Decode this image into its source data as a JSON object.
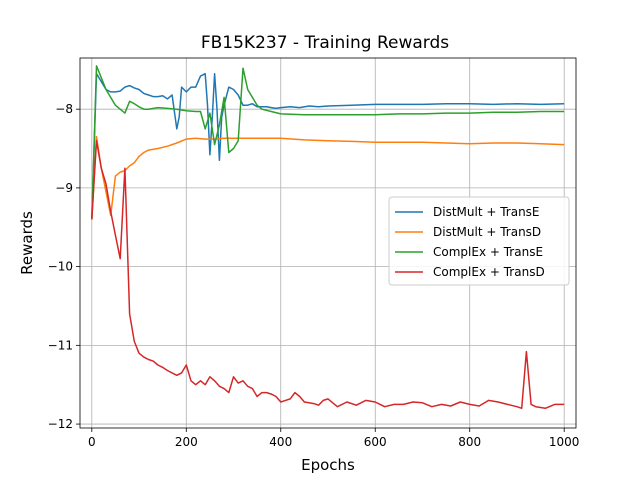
{
  "chart_data": {
    "type": "line",
    "title": "FB15K237 - Training Rewards",
    "xlabel": "Epochs",
    "ylabel": "Rewards",
    "xlim": [
      -25,
      1025
    ],
    "ylim": [
      -12.05,
      -7.35
    ],
    "xticks": [
      0,
      200,
      400,
      600,
      800,
      1000
    ],
    "yticks": [
      -12,
      -11,
      -10,
      -9,
      -8
    ],
    "grid": true,
    "legend_position": "center-right",
    "series": [
      {
        "name": "DistMult + TransE",
        "color": "#1f77b4",
        "x": [
          0,
          10,
          20,
          30,
          40,
          50,
          60,
          70,
          80,
          90,
          100,
          110,
          120,
          130,
          140,
          150,
          160,
          170,
          180,
          185,
          190,
          200,
          210,
          220,
          230,
          240,
          245,
          250,
          255,
          260,
          265,
          270,
          275,
          280,
          290,
          300,
          310,
          320,
          330,
          340,
          350,
          360,
          370,
          380,
          390,
          400,
          420,
          440,
          460,
          480,
          500,
          550,
          600,
          650,
          700,
          750,
          800,
          850,
          900,
          950,
          1000
        ],
        "y": [
          -9.4,
          -7.55,
          -7.65,
          -7.75,
          -7.78,
          -7.78,
          -7.77,
          -7.72,
          -7.7,
          -7.73,
          -7.75,
          -7.8,
          -7.82,
          -7.84,
          -7.84,
          -7.83,
          -7.87,
          -7.82,
          -8.25,
          -8.1,
          -7.72,
          -7.78,
          -7.72,
          -7.72,
          -7.58,
          -7.55,
          -7.95,
          -8.58,
          -8.1,
          -7.55,
          -8.0,
          -8.65,
          -8.1,
          -7.95,
          -7.72,
          -7.75,
          -7.82,
          -7.95,
          -7.95,
          -7.93,
          -7.97,
          -7.97,
          -7.97,
          -7.98,
          -7.99,
          -7.98,
          -7.97,
          -7.98,
          -7.96,
          -7.97,
          -7.96,
          -7.95,
          -7.94,
          -7.94,
          -7.94,
          -7.93,
          -7.93,
          -7.94,
          -7.93,
          -7.94,
          -7.93
        ]
      },
      {
        "name": "DistMult + TransD",
        "color": "#ff7f0e",
        "x": [
          0,
          10,
          20,
          30,
          40,
          50,
          60,
          70,
          80,
          90,
          100,
          110,
          120,
          140,
          160,
          180,
          200,
          220,
          240,
          260,
          280,
          300,
          350,
          400,
          450,
          500,
          550,
          600,
          650,
          700,
          750,
          800,
          850,
          900,
          950,
          1000
        ],
        "y": [
          -9.4,
          -8.35,
          -8.75,
          -9.05,
          -9.35,
          -8.85,
          -8.8,
          -8.78,
          -8.72,
          -8.68,
          -8.6,
          -8.55,
          -8.52,
          -8.5,
          -8.47,
          -8.43,
          -8.38,
          -8.37,
          -8.38,
          -8.38,
          -8.37,
          -8.37,
          -8.37,
          -8.37,
          -8.39,
          -8.4,
          -8.41,
          -8.42,
          -8.42,
          -8.42,
          -8.43,
          -8.44,
          -8.43,
          -8.43,
          -8.44,
          -8.45
        ]
      },
      {
        "name": "ComplEx + TransE",
        "color": "#2ca02c",
        "x": [
          0,
          10,
          20,
          30,
          40,
          50,
          60,
          70,
          80,
          90,
          100,
          110,
          120,
          140,
          160,
          180,
          200,
          220,
          230,
          240,
          250,
          260,
          270,
          280,
          290,
          300,
          310,
          320,
          330,
          340,
          350,
          360,
          380,
          400,
          450,
          500,
          550,
          600,
          650,
          700,
          750,
          800,
          850,
          900,
          950,
          1000
        ],
        "y": [
          -9.4,
          -7.45,
          -7.6,
          -7.75,
          -7.85,
          -7.95,
          -8.0,
          -8.05,
          -7.9,
          -7.93,
          -7.97,
          -8.0,
          -8.0,
          -7.98,
          -7.99,
          -8.0,
          -8.02,
          -8.03,
          -8.03,
          -8.25,
          -8.05,
          -8.45,
          -8.2,
          -7.85,
          -8.55,
          -8.5,
          -8.4,
          -7.48,
          -7.75,
          -7.85,
          -7.95,
          -8.0,
          -8.03,
          -8.06,
          -8.07,
          -8.07,
          -8.07,
          -8.07,
          -8.06,
          -8.06,
          -8.05,
          -8.05,
          -8.04,
          -8.04,
          -8.03,
          -8.03
        ]
      },
      {
        "name": "ComplEx + TransD",
        "color": "#d62728",
        "x": [
          0,
          10,
          20,
          30,
          40,
          50,
          60,
          70,
          80,
          90,
          100,
          110,
          120,
          130,
          140,
          150,
          160,
          170,
          180,
          190,
          200,
          210,
          220,
          230,
          240,
          250,
          260,
          270,
          280,
          290,
          300,
          310,
          320,
          330,
          340,
          350,
          360,
          370,
          380,
          390,
          400,
          410,
          420,
          430,
          440,
          450,
          460,
          470,
          480,
          490,
          500,
          520,
          540,
          560,
          580,
          600,
          620,
          640,
          660,
          680,
          700,
          720,
          740,
          760,
          780,
          800,
          820,
          840,
          860,
          880,
          900,
          910,
          920,
          930,
          940,
          960,
          980,
          1000
        ],
        "y": [
          -9.4,
          -8.4,
          -8.75,
          -8.95,
          -9.3,
          -9.6,
          -9.9,
          -8.75,
          -10.6,
          -10.95,
          -11.1,
          -11.15,
          -11.18,
          -11.2,
          -11.25,
          -11.28,
          -11.32,
          -11.35,
          -11.38,
          -11.35,
          -11.25,
          -11.45,
          -11.5,
          -11.45,
          -11.5,
          -11.4,
          -11.45,
          -11.52,
          -11.55,
          -11.6,
          -11.4,
          -11.48,
          -11.45,
          -11.52,
          -11.55,
          -11.65,
          -11.6,
          -11.6,
          -11.62,
          -11.65,
          -11.72,
          -11.7,
          -11.68,
          -11.6,
          -11.65,
          -11.72,
          -11.73,
          -11.74,
          -11.76,
          -11.7,
          -11.68,
          -11.78,
          -11.72,
          -11.76,
          -11.7,
          -11.72,
          -11.78,
          -11.75,
          -11.75,
          -11.72,
          -11.73,
          -11.78,
          -11.75,
          -11.77,
          -11.72,
          -11.75,
          -11.77,
          -11.7,
          -11.72,
          -11.75,
          -11.78,
          -11.8,
          -11.08,
          -11.75,
          -11.78,
          -11.8,
          -11.75,
          -11.75
        ]
      }
    ]
  }
}
